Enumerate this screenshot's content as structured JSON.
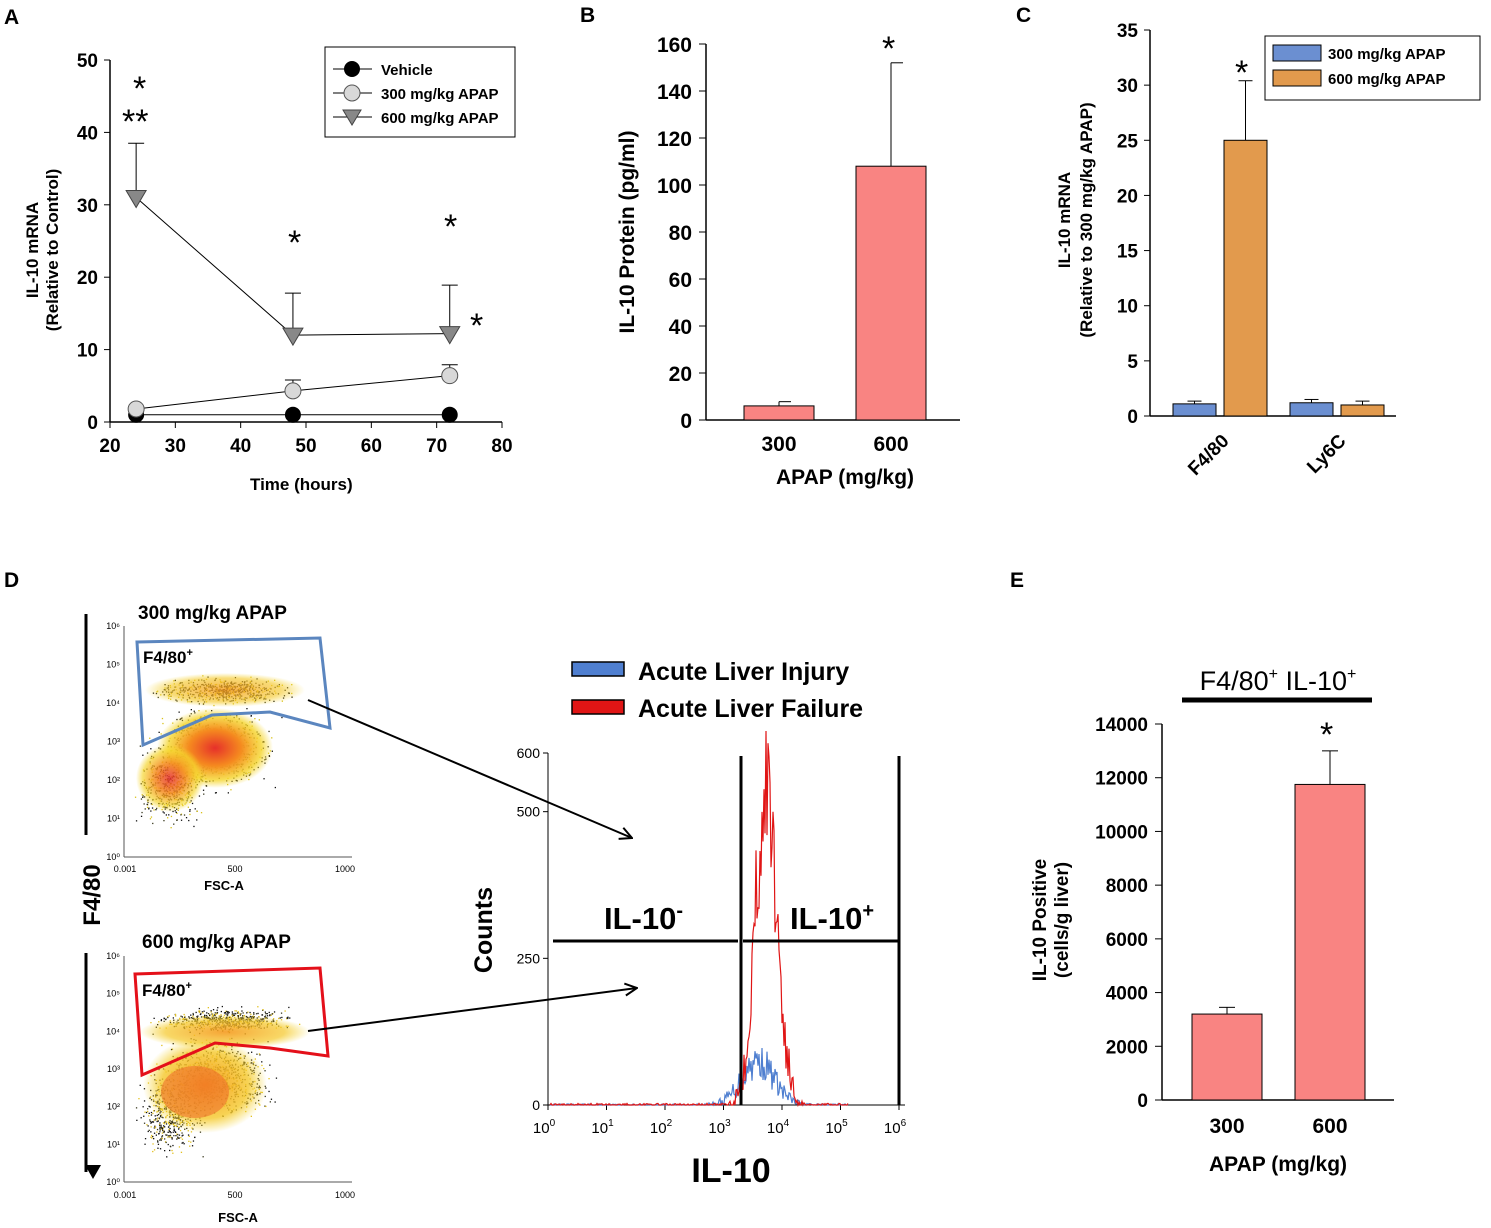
{
  "panel_labels": {
    "a": "A",
    "b": "B",
    "c": "C",
    "d": "D",
    "e": "E"
  },
  "colors": {
    "salmon": "#f98482",
    "blue": "#6b8fd1",
    "orange": "#e29a4d",
    "gray_fill": "#888888",
    "light_fill": "#d8d8d8",
    "gate_blue": "#5b86bf",
    "gate_red": "#e4101a",
    "hist_blue": "#4f7fd0",
    "hist_red": "#e01515"
  },
  "chart_data": [
    {
      "id": "A",
      "type": "line",
      "xlabel": "Time (hours)",
      "ylabel": "IL-10 mRNA",
      "ylabel2": "(Relative to Control)",
      "xlim": [
        20,
        80
      ],
      "ylim": [
        0,
        50
      ],
      "x_ticks": [
        "20",
        "30",
        "40",
        "50",
        "60",
        "70",
        "80"
      ],
      "y_ticks": [
        "0",
        "10",
        "20",
        "30",
        "40",
        "50"
      ],
      "series": [
        {
          "name": "Vehicle",
          "x": [
            24,
            48,
            72
          ],
          "values": [
            1,
            1,
            1
          ],
          "err": [
            0,
            0,
            0
          ],
          "marker": "circle-black"
        },
        {
          "name": "300 mg/kg APAP",
          "x": [
            24,
            48,
            72
          ],
          "values": [
            1.8,
            4.3,
            6.4
          ],
          "err": [
            0.3,
            1.5,
            1.5
          ],
          "marker": "circle-light"
        },
        {
          "name": "600 mg/kg APAP",
          "x": [
            24,
            48,
            72
          ],
          "values": [
            31,
            12,
            12.2
          ],
          "err": [
            7.5,
            5.8,
            6.7
          ],
          "marker": "triangle-gray"
        }
      ],
      "annotations": [
        "*",
        "**",
        "*",
        "*",
        "*"
      ]
    },
    {
      "id": "B",
      "type": "bar",
      "categories": [
        "300",
        "600"
      ],
      "values": [
        6,
        108
      ],
      "err": [
        1.8,
        44
      ],
      "xlabel": "APAP (mg/kg)",
      "ylabel": "IL-10 Protein (pg/ml)",
      "ylim": [
        0,
        160
      ],
      "y_ticks": [
        "0",
        "20",
        "40",
        "60",
        "80",
        "100",
        "120",
        "140",
        "160"
      ],
      "annotations": [
        "*"
      ]
    },
    {
      "id": "C",
      "type": "bar",
      "categories": [
        "F4/80",
        "Ly6C"
      ],
      "series": [
        {
          "name": "300 mg/kg APAP",
          "values": [
            1.1,
            1.2
          ],
          "err": [
            0.25,
            0.3
          ]
        },
        {
          "name": "600 mg/kg APAP",
          "values": [
            25,
            1.0
          ],
          "err": [
            5.4,
            0.35
          ]
        }
      ],
      "ylabel": "IL-10 mRNA",
      "ylabel2": "(Relative to 300 mg/kg APAP)",
      "ylim": [
        0,
        35
      ],
      "y_ticks": [
        "0",
        "5",
        "10",
        "15",
        "20",
        "25",
        "30",
        "35"
      ],
      "annotations": [
        "*"
      ]
    },
    {
      "id": "D",
      "type": "scatter",
      "plot1_title": "300 mg/kg APAP",
      "plot2_title": "600 mg/kg APAP",
      "gate_label": "F4/80",
      "gate_sup": "+",
      "y_axis_label": "F4/80",
      "x_axis_label": "FSC-A",
      "scatter_x_ticks": [
        "0.001",
        "500",
        "1000"
      ],
      "scatter_y_ticks": [
        "10⁰",
        "10¹",
        "10²",
        "10³",
        "10⁴",
        "10⁵",
        "10⁶"
      ],
      "histogram": {
        "legend": [
          "Acute Liver Injury",
          "Acute Liver Failure"
        ],
        "xlabel": "IL-10",
        "ylabel": "Counts",
        "y_ticks": [
          "0",
          "250",
          "500",
          "600"
        ],
        "x_ticks_base": "10",
        "x_ticks_exp": [
          "0",
          "1",
          "2",
          "3",
          "4",
          "5",
          "6"
        ],
        "gate_neg": "IL-10",
        "gate_neg_sup": "-",
        "gate_pos": "IL-10",
        "gate_pos_sup": "+"
      }
    },
    {
      "id": "E",
      "type": "bar",
      "title_main": "F4/80",
      "title_sup1": "+",
      "title_mid": " IL-10",
      "title_sup2": "+",
      "categories": [
        "300",
        "600"
      ],
      "values": [
        3200,
        11750
      ],
      "err": [
        250,
        1250
      ],
      "xlabel": "APAP (mg/kg)",
      "ylabel": "IL-10 Positive",
      "ylabel2": "(cells/g liver)",
      "ylim": [
        0,
        14000
      ],
      "y_ticks": [
        "0",
        "2000",
        "4000",
        "6000",
        "8000",
        "10000",
        "12000",
        "14000"
      ],
      "annotations": [
        "*"
      ]
    }
  ]
}
